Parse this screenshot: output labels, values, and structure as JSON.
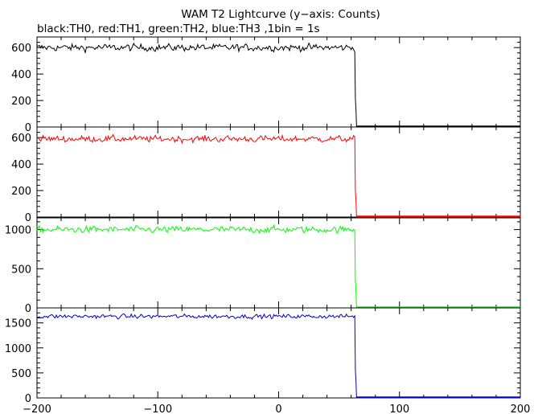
{
  "title": "WAM T2 Lightcurve (y−axis: Counts)",
  "subtitle": "black:TH0, red:TH1, green:TH2, blue:TH3 ,1bin = 1s",
  "chart_data": [
    {
      "type": "line",
      "series": [
        {
          "name": "TH0",
          "color": "#000000",
          "level": 600,
          "noise": 22,
          "end": 63,
          "tail": 215
        }
      ],
      "xlim": [
        -200,
        200
      ],
      "ylim": [
        0,
        680
      ],
      "x_ticks": [
        -200,
        -100,
        0,
        100,
        200
      ],
      "y_ticks": [
        0,
        200,
        400,
        600
      ],
      "y_tick_labels": [
        "0",
        "200",
        "400",
        "600"
      ]
    },
    {
      "type": "line",
      "series": [
        {
          "name": "TH1",
          "color": "#ff0000",
          "level": 590,
          "noise": 20,
          "end": 63,
          "tail": 200
        }
      ],
      "xlim": [
        -200,
        200
      ],
      "ylim": [
        0,
        680
      ],
      "x_ticks": [
        -200,
        -100,
        0,
        100,
        200
      ],
      "y_ticks": [
        0,
        200,
        400,
        600
      ],
      "y_tick_labels": [
        "0",
        "200",
        "400",
        "600"
      ]
    },
    {
      "type": "line",
      "series": [
        {
          "name": "TH2",
          "color": "#00ff00",
          "level": 1000,
          "noise": 35,
          "end": 63,
          "tail": 350
        }
      ],
      "xlim": [
        -200,
        200
      ],
      "ylim": [
        0,
        1150
      ],
      "x_ticks": [
        -200,
        -100,
        0,
        100,
        200
      ],
      "y_ticks": [
        0,
        500,
        1000
      ],
      "y_tick_labels": [
        "0",
        "500",
        "1000"
      ]
    },
    {
      "type": "line",
      "series": [
        {
          "name": "TH3",
          "color": "#0000cc",
          "level": 1630,
          "noise": 35,
          "end": 63,
          "tail": 560
        }
      ],
      "xlim": [
        -200,
        200
      ],
      "ylim": [
        0,
        1800
      ],
      "x_ticks": [
        -200,
        -100,
        0,
        100,
        200
      ],
      "x_tick_labels": [
        "−200",
        "−100",
        "0",
        "100",
        "200"
      ],
      "y_ticks": [
        0,
        500,
        1000,
        1500
      ],
      "y_tick_labels": [
        "0",
        "500",
        "1000",
        "1500"
      ]
    }
  ]
}
